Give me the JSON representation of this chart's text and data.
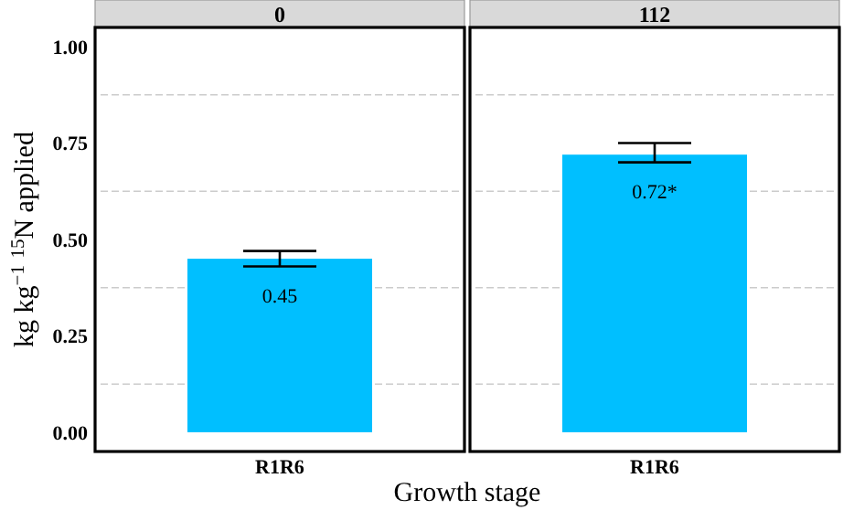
{
  "chart_data": [
    {
      "type": "bar",
      "title": "0",
      "ylabel": "kg kg$^{−1}$ $^{15}$N applied",
      "xlabel": "Growth stage",
      "categories": [
        "R1R6"
      ],
      "values": [
        0.45
      ],
      "errors": [
        0.02
      ],
      "value_labels": [
        "0.45"
      ],
      "color": "#00bfff",
      "ylim": [
        -0.05,
        1.05
      ],
      "yticks": [
        {
          "value": 0,
          "label": "0.00"
        },
        {
          "value": 0.125,
          "label": null
        },
        {
          "value": 0.25,
          "label": "0.25"
        },
        {
          "value": 0.375,
          "label": null
        },
        {
          "value": 0.5,
          "label": "0.50"
        },
        {
          "value": 0.625,
          "label": null
        },
        {
          "value": 0.75,
          "label": "0.75"
        },
        {
          "value": 0.875,
          "label": null
        },
        {
          "value": 1,
          "label": "1.00"
        }
      ],
      "grid": true
    },
    {
      "type": "bar",
      "title": "112",
      "categories": [
        "R1R6"
      ],
      "values": [
        0.72
      ],
      "errors": [
        [
          0.7,
          0.75
        ]
      ],
      "value_labels": [
        "0.72*"
      ],
      "color": "#00bfff",
      "ylim": [
        -0.05,
        1.05
      ],
      "yticks": [
        {
          "value": 0.125,
          "label": null
        },
        {
          "value": 0.375,
          "label": null
        },
        {
          "value": 0.625,
          "label": null
        },
        {
          "value": 0.875,
          "label": null
        }
      ],
      "grid": true,
      "tick_labels": "x"
    }
  ]
}
